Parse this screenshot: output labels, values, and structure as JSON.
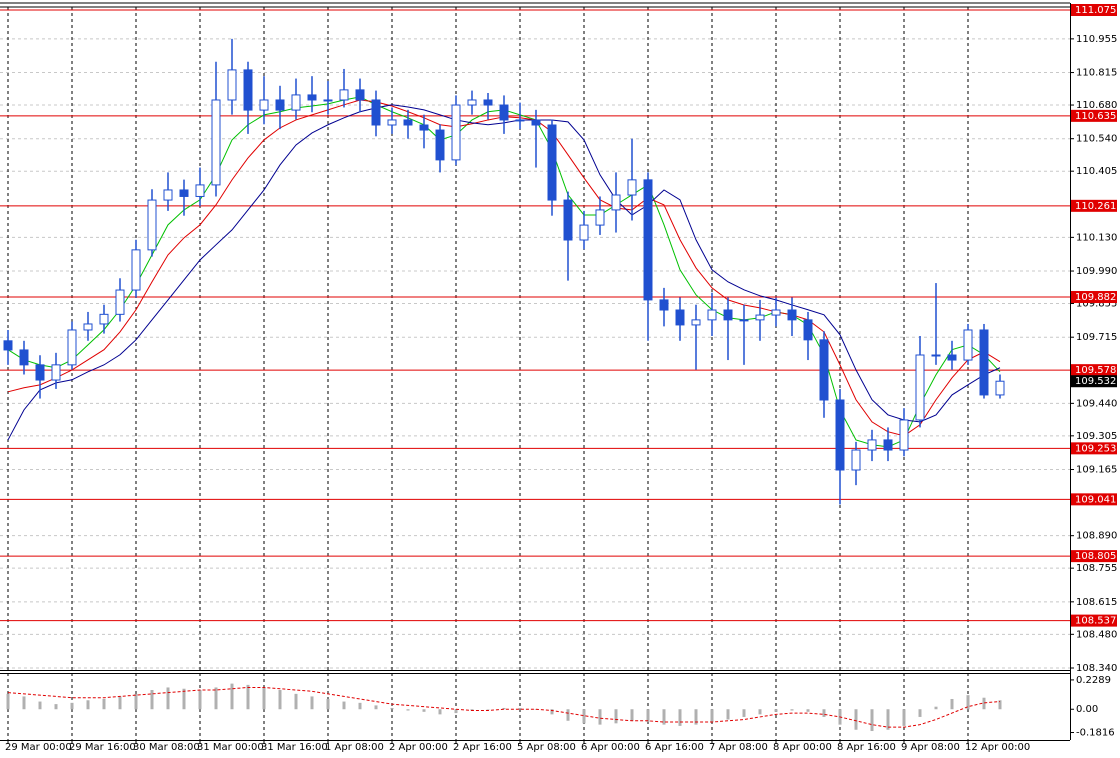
{
  "chart_data": [
    {
      "type": "candlestick",
      "categories": [
        "29 Mar 00:00",
        null,
        null,
        null,
        "29 Mar 16:00",
        null,
        null,
        null,
        "30 Mar 08:00",
        null,
        null,
        null,
        "31 Mar 00:00",
        null,
        null,
        null,
        "31 Mar 16:00",
        null,
        null,
        null,
        "1 Apr 08:00",
        null,
        null,
        null,
        "2 Apr 00:00",
        null,
        null,
        null,
        "2 Apr 16:00",
        null,
        null,
        null,
        "5 Apr 08:00",
        null,
        null,
        null,
        "6 Apr 00:00",
        null,
        null,
        null,
        "6 Apr 16:00",
        null,
        null,
        null,
        "7 Apr 08:00",
        null,
        null,
        null,
        "8 Apr 00:00",
        null,
        null,
        null,
        "8 Apr 16:00",
        null,
        null,
        null,
        "9 Apr 08:00",
        null,
        null,
        null,
        "12 Apr 00:00",
        null,
        null
      ],
      "open": [
        109.7,
        109.662,
        109.6,
        109.537,
        109.6,
        109.745,
        109.77,
        109.81,
        109.911,
        110.078,
        110.285,
        110.327,
        110.3,
        110.348,
        110.701,
        110.826,
        110.659,
        110.701,
        110.659,
        110.722,
        110.701,
        110.701,
        110.743,
        110.701,
        110.597,
        110.618,
        110.597,
        110.576,
        110.452,
        110.68,
        110.701,
        110.68,
        110.618,
        110.618,
        110.597,
        110.285,
        110.119,
        110.181,
        110.244,
        110.306,
        110.369,
        109.87,
        109.828,
        109.766,
        109.787,
        109.828,
        109.787,
        109.787,
        109.807,
        109.828,
        109.787,
        109.704,
        109.454,
        109.163,
        109.246,
        109.288,
        109.246,
        109.371,
        109.641,
        109.641,
        109.62,
        109.745,
        109.475
      ],
      "high": [
        109.745,
        109.7,
        109.64,
        109.65,
        109.78,
        109.82,
        109.85,
        109.96,
        110.12,
        110.33,
        110.4,
        110.37,
        110.42,
        110.86,
        110.955,
        110.86,
        110.8,
        110.76,
        110.79,
        110.8,
        110.78,
        110.83,
        110.79,
        110.74,
        110.67,
        110.66,
        110.64,
        110.6,
        110.72,
        110.74,
        110.73,
        110.72,
        110.69,
        110.66,
        110.62,
        110.32,
        110.24,
        110.3,
        110.4,
        110.54,
        110.4,
        109.92,
        109.88,
        109.85,
        109.9,
        109.88,
        109.85,
        109.87,
        109.88,
        109.88,
        109.82,
        109.74,
        109.5,
        109.28,
        109.33,
        109.34,
        109.42,
        109.72,
        109.94,
        109.7,
        109.77,
        109.77,
        109.56
      ],
      "low": [
        109.6,
        109.56,
        109.46,
        109.5,
        109.58,
        109.7,
        109.73,
        109.78,
        109.88,
        110.05,
        110.24,
        110.22,
        110.26,
        110.3,
        110.64,
        110.56,
        110.6,
        110.58,
        110.62,
        110.65,
        110.64,
        110.67,
        110.65,
        110.55,
        110.56,
        110.54,
        110.5,
        110.4,
        110.43,
        110.64,
        110.62,
        110.56,
        110.58,
        110.42,
        110.22,
        109.95,
        110.08,
        110.14,
        110.15,
        110.2,
        109.7,
        109.76,
        109.7,
        109.58,
        109.72,
        109.62,
        109.6,
        109.7,
        109.76,
        109.72,
        109.62,
        109.38,
        109.02,
        109.1,
        109.2,
        109.2,
        109.22,
        109.34,
        109.6,
        109.58,
        109.6,
        109.46,
        109.46
      ],
      "close": [
        109.662,
        109.6,
        109.537,
        109.6,
        109.745,
        109.77,
        109.81,
        109.911,
        110.078,
        110.285,
        110.327,
        110.3,
        110.348,
        110.701,
        110.826,
        110.659,
        110.701,
        110.659,
        110.722,
        110.701,
        110.701,
        110.743,
        110.701,
        110.597,
        110.618,
        110.597,
        110.576,
        110.452,
        110.68,
        110.701,
        110.68,
        110.618,
        110.618,
        110.597,
        110.285,
        110.119,
        110.181,
        110.244,
        110.306,
        110.369,
        109.87,
        109.828,
        109.766,
        109.787,
        109.828,
        109.787,
        109.787,
        109.807,
        109.828,
        109.787,
        109.704,
        109.454,
        109.163,
        109.246,
        109.288,
        109.246,
        109.371,
        109.641,
        109.641,
        109.62,
        109.745,
        109.475,
        109.532
      ],
      "color": "#2050d0",
      "series": [
        {
          "color": "#00c000",
          "values": [
            109.663,
            109.621,
            109.6,
            109.588,
            109.621,
            109.683,
            109.746,
            109.829,
            109.932,
            110.057,
            110.182,
            110.244,
            110.286,
            110.39,
            110.535,
            110.598,
            110.639,
            110.652,
            110.668,
            110.676,
            110.685,
            110.701,
            110.714,
            110.681,
            110.652,
            110.627,
            110.598,
            110.535,
            110.556,
            110.618,
            110.652,
            110.66,
            110.639,
            110.618,
            110.494,
            110.307,
            110.223,
            110.223,
            110.265,
            110.307,
            110.348,
            110.182,
            109.995,
            109.891,
            109.829,
            109.796,
            109.787,
            109.796,
            109.82,
            109.808,
            109.766,
            109.642,
            109.413,
            109.288,
            109.268,
            109.259,
            109.288,
            109.434,
            109.559,
            109.663,
            109.683,
            109.642,
            109.571
          ]
        },
        {
          "color": "#e00000",
          "values": [
            109.488,
            109.505,
            109.517,
            109.546,
            109.579,
            109.621,
            109.663,
            109.737,
            109.829,
            109.945,
            110.057,
            110.128,
            110.182,
            110.265,
            110.369,
            110.46,
            110.535,
            110.585,
            110.618,
            110.639,
            110.66,
            110.681,
            110.701,
            110.693,
            110.676,
            110.652,
            110.627,
            110.598,
            110.589,
            110.602,
            110.618,
            110.631,
            110.627,
            110.618,
            110.568,
            110.473,
            110.377,
            110.286,
            110.252,
            110.244,
            110.294,
            110.265,
            110.12,
            110.003,
            109.92,
            109.87,
            109.849,
            109.837,
            109.82,
            109.808,
            109.787,
            109.737,
            109.6,
            109.455,
            109.363,
            109.322,
            109.305,
            109.351,
            109.455,
            109.546,
            109.621,
            109.654,
            109.613
          ]
        },
        {
          "color": "#000090",
          "values": [
            109.288,
            109.413,
            109.496,
            109.525,
            109.538,
            109.571,
            109.6,
            109.642,
            109.704,
            109.787,
            109.87,
            109.953,
            110.036,
            110.099,
            110.161,
            110.244,
            110.327,
            110.431,
            110.514,
            110.564,
            110.598,
            110.627,
            110.652,
            110.668,
            110.681,
            110.672,
            110.66,
            110.639,
            110.618,
            110.606,
            110.598,
            110.606,
            110.618,
            110.618,
            110.618,
            110.61,
            110.535,
            110.39,
            110.286,
            110.223,
            110.265,
            110.327,
            110.286,
            110.12,
            109.995,
            109.945,
            109.912,
            109.887,
            109.87,
            109.849,
            109.829,
            109.808,
            109.725,
            109.579,
            109.455,
            109.392,
            109.371,
            109.363,
            109.392,
            109.475,
            109.517,
            109.558,
            109.588
          ]
        }
      ],
      "ylim": [
        108.34,
        111.075
      ],
      "yticks": [
        110.955,
        110.815,
        {
          "value": 110.68,
          "label": "110.680"
        },
        {
          "value": 110.54,
          "label": "110.540"
        },
        110.405,
        {
          "value": 110.13,
          "label": "110.130"
        },
        {
          "value": 109.99,
          "label": "109.990"
        },
        109.855,
        109.715,
        {
          "value": 109.44,
          "label": "109.440"
        },
        109.305,
        109.165,
        {
          "value": 108.89,
          "label": "108.890"
        },
        108.755,
        108.615,
        {
          "value": 108.48,
          "label": "108.480"
        },
        {
          "value": 108.34,
          "label": "108.340"
        }
      ],
      "levels": [
        111.075,
        110.635,
        110.261,
        109.882,
        109.578,
        109.253,
        109.041,
        108.805,
        108.537
      ],
      "level_color": "#e00000",
      "grid": true
    },
    {
      "type": "bar",
      "values": [
        0.12,
        0.1,
        0.06,
        0.04,
        0.05,
        0.07,
        0.08,
        0.1,
        0.12,
        0.15,
        0.17,
        0.16,
        0.15,
        0.17,
        0.2,
        0.19,
        0.17,
        0.15,
        0.12,
        0.1,
        0.08,
        0.06,
        0.05,
        0.03,
        0.01,
        -0.01,
        -0.02,
        -0.04,
        -0.03,
        -0.01,
        0,
        0.01,
        0.01,
        0,
        -0.04,
        -0.09,
        -0.11,
        -0.12,
        -0.11,
        -0.09,
        -0.1,
        -0.12,
        -0.13,
        -0.12,
        -0.1,
        -0.08,
        -0.06,
        -0.04,
        -0.02,
        -0.01,
        -0.02,
        -0.06,
        -0.12,
        -0.16,
        -0.17,
        -0.16,
        -0.13,
        -0.06,
        0.02,
        0.08,
        0.11,
        0.09,
        0.07
      ],
      "color": "#b0b0b0",
      "signal": {
        "color": "#e00000",
        "values": [
          0.13,
          0.12,
          0.11,
          0.1,
          0.09,
          0.09,
          0.09,
          0.1,
          0.11,
          0.12,
          0.13,
          0.14,
          0.15,
          0.15,
          0.16,
          0.17,
          0.17,
          0.16,
          0.15,
          0.14,
          0.12,
          0.1,
          0.08,
          0.06,
          0.04,
          0.03,
          0.02,
          0.01,
          0,
          -0.01,
          -0.01,
          0,
          0,
          0,
          -0.01,
          -0.03,
          -0.05,
          -0.07,
          -0.08,
          -0.09,
          -0.09,
          -0.1,
          -0.1,
          -0.1,
          -0.1,
          -0.09,
          -0.08,
          -0.06,
          -0.04,
          -0.03,
          -0.03,
          -0.04,
          -0.06,
          -0.09,
          -0.12,
          -0.14,
          -0.14,
          -0.12,
          -0.08,
          -0.03,
          0.02,
          0.05,
          0.06
        ]
      },
      "ylim": [
        -0.24,
        0.275
      ],
      "yticks": [
        0.2289,
        {
          "value": 0,
          "label": "0.00"
        },
        -0.1816
      ]
    }
  ]
}
